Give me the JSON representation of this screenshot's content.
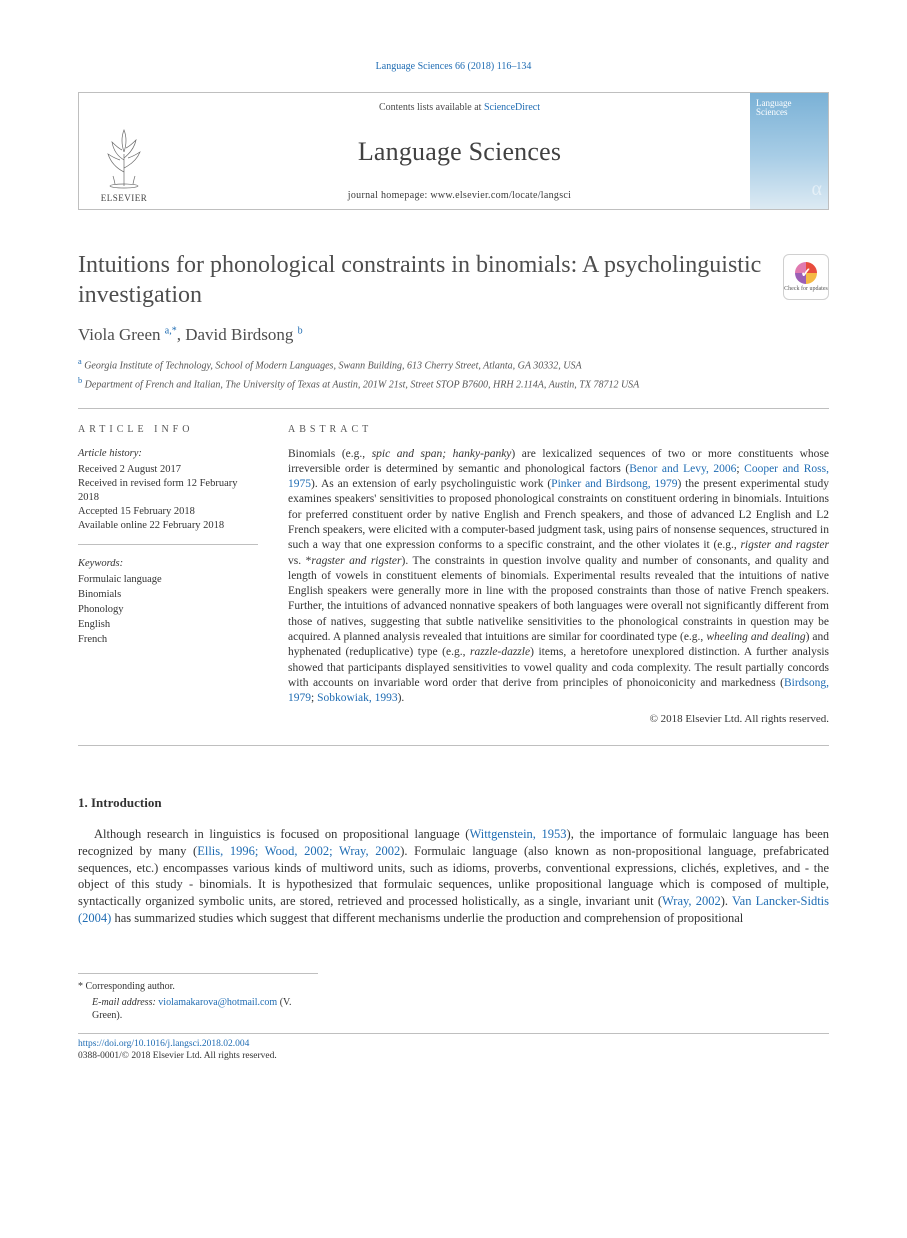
{
  "header": {
    "citation": "Language Sciences 66 (2018) 116–134",
    "contents_prefix": "Contents lists available at ",
    "contents_link": "ScienceDirect",
    "journal_name": "Language Sciences",
    "homepage_prefix": "journal homepage: ",
    "homepage_url": "www.elsevier.com/locate/langsci",
    "publisher_label": "ELSEVIER",
    "cover_title": "Language Sciences",
    "cover_alpha": "α"
  },
  "checkmark": {
    "label": "Check for updates"
  },
  "article": {
    "title": "Intuitions for phonological constraints in binomials: A psycholinguistic investigation",
    "authors_html": "Viola Green <sup>a,*</sup>, David Birdsong <sup>b</sup>",
    "affiliations": {
      "a": "Georgia Institute of Technology, School of Modern Languages, Swann Building, 613 Cherry Street, Atlanta, GA 30332, USA",
      "b": "Department of French and Italian, The University of Texas at Austin, 201W 21st, Street STOP B7600, HRH 2.114A, Austin, TX 78712 USA"
    }
  },
  "info": {
    "heading": "ARTICLE INFO",
    "history_label": "Article history:",
    "history": [
      "Received 2 August 2017",
      "Received in revised form 12 February 2018",
      "Accepted 15 February 2018",
      "Available online 22 February 2018"
    ],
    "keywords_label": "Keywords:",
    "keywords": [
      "Formulaic language",
      "Binomials",
      "Phonology",
      "English",
      "French"
    ]
  },
  "abstract": {
    "heading": "ABSTRACT",
    "text_html": "Binomials (e.g., <span class='it'>spic and span; hanky-panky</span>) are lexicalized sequences of two or more constituents whose irreversible order is determined by semantic and phonological factors (<span class='lnk'>Benor and Levy, 2006</span>; <span class='lnk'>Cooper and Ross, 1975</span>). As an extension of early psycholinguistic work (<span class='lnk'>Pinker and Birdsong, 1979</span>) the present experimental study examines speakers' sensitivities to proposed phonological constraints on constituent ordering in binomials. Intuitions for preferred constituent order by native English and French speakers, and those of advanced L2 English and L2 French speakers, were elicited with a computer-based judgment task, using pairs of nonsense sequences, structured in such a way that one expression conforms to a specific constraint, and the other violates it (e.g., <span class='it'>rigster and ragster</span> vs. *<span class='it'>ragster and rigster</span>). The constraints in question involve quality and number of consonants, and quality and length of vowels in constituent elements of binomials. Experimental results revealed that the intuitions of native English speakers were generally more in line with the proposed constraints than those of native French speakers. Further, the intuitions of advanced nonnative speakers of both languages were overall not significantly different from those of natives, suggesting that subtle nativelike sensitivities to the phonological constraints in question may be acquired. A planned analysis revealed that intuitions are similar for coordinated type (e.g., <span class='it'>wheeling and dealing</span>) and hyphenated (reduplicative) type (e.g., <span class='it'>razzle-dazzle</span>) items, a heretofore unexplored distinction. A further analysis showed that participants displayed sensitivities to vowel quality and coda complexity. The result partially concords with accounts on invariable word order that derive from principles of phonoiconicity and markedness (<span class='lnk'>Birdsong, 1979</span>; <span class='lnk'>Sobkowiak, 1993</span>).",
    "copyright": "© 2018 Elsevier Ltd. All rights reserved."
  },
  "section1": {
    "heading": "1. Introduction",
    "para_html": "Although research in linguistics is focused on propositional language (<span class='lnk'>Wittgenstein, 1953</span>), the importance of formulaic language has been recognized by many (<span class='lnk'>Ellis, 1996; Wood, 2002; Wray, 2002</span>). Formulaic language (also known as non-propositional language, prefabricated sequences, etc.) encompasses various kinds of multiword units, such as idioms, proverbs, conventional expressions, clichés, expletives, and - the object of this study - binomials. It is hypothesized that formulaic sequences, unlike propositional language which is composed of multiple, syntactically organized symbolic units, are stored, retrieved and processed holistically, as a single, invariant unit (<span class='lnk'>Wray, 2002</span>). <span class='lnk'>Van Lancker-Sidtis (2004)</span> has summarized studies which suggest that different mechanisms underlie the production and comprehension of propositional"
  },
  "footnotes": {
    "corr": "* Corresponding author.",
    "email_label": "E-mail address:",
    "email_value": "violamakarova@hotmail.com",
    "email_paren": "(V. Green)."
  },
  "bottom": {
    "doi": "https://doi.org/10.1016/j.langsci.2018.02.004",
    "issn_line": "0388-0001/© 2018 Elsevier Ltd. All rights reserved."
  },
  "colors": {
    "link": "#1f6cb3",
    "rule": "#bfbfbf",
    "text": "#333333",
    "heading": "#4e4e4e"
  },
  "fonts": {
    "body_family": "Times New Roman, serif",
    "title_size_pt": 24,
    "authors_size_pt": 17,
    "abstract_size_pt": 11.5,
    "body_size_pt": 12.5,
    "small_size_pt": 10
  }
}
